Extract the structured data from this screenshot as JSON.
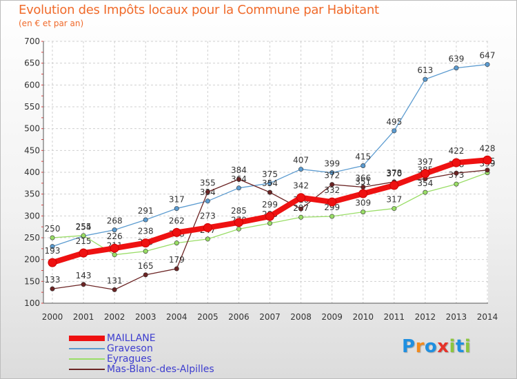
{
  "title": "Evolution des Impôts locaux pour la Commune par Habitant",
  "subtitle": "(en € et par an)",
  "logo": {
    "text": "Proxiti",
    "letters": [
      "P",
      "r",
      "o",
      "x",
      "i",
      "t",
      "i"
    ],
    "colors": [
      "#1f8fe0",
      "#f28a1c",
      "#1f8fe0",
      "#e6332a",
      "#8cc63f",
      "#1f8fe0",
      "#8cc63f"
    ]
  },
  "chart_data": {
    "type": "line",
    "title": "Evolution des Impôts locaux pour la Commune par Habitant",
    "subtitle": "(en € et par an)",
    "xlabel": "",
    "ylabel": "",
    "x": [
      "2000",
      "2001",
      "2002",
      "2003",
      "2004",
      "2005",
      "2006",
      "2007",
      "2008",
      "2009",
      "2010",
      "2011",
      "2012",
      "2013",
      "2014"
    ],
    "ylim": [
      100,
      700
    ],
    "yticks": [
      100,
      150,
      200,
      250,
      300,
      350,
      400,
      450,
      500,
      550,
      600,
      650,
      700
    ],
    "yticks_labels": [
      "100",
      "150",
      "200",
      "250",
      "300",
      "350",
      "400",
      "450",
      "500",
      "550",
      "600",
      "650",
      "700"
    ],
    "grid": true,
    "legend_position": "bottom-left",
    "series": [
      {
        "name": "MAILLANE",
        "color": "#ee1111",
        "values": [
          193,
          215,
          226,
          238,
          262,
          273,
          285,
          299,
          342,
          332,
          351,
          370,
          397,
          422,
          428
        ],
        "labels": [
          "193",
          "215",
          "226",
          "238",
          "262",
          "273",
          "285",
          "299",
          "342",
          "332",
          "351",
          "370",
          "397",
          "422",
          "428"
        ]
      },
      {
        "name": "Graveson",
        "color": "#5b9bd0",
        "values": [
          230,
          254,
          268,
          291,
          317,
          334,
          364,
          375,
          407,
          399,
          415,
          495,
          613,
          639,
          647
        ],
        "labels": [
          "",
          "254",
          "268",
          "291",
          "317",
          "334",
          "364",
          "375",
          "407",
          "399",
          "415",
          "495",
          "613",
          "639",
          "647"
        ]
      },
      {
        "name": "Eyragues",
        "color": "#99dd66",
        "values": [
          250,
          255,
          211,
          219,
          238,
          247,
          270,
          283,
          297,
          299,
          309,
          317,
          354,
          373,
          399
        ],
        "labels": [
          "250",
          "255",
          "211",
          "219",
          "238",
          "247",
          "270",
          "283",
          "297",
          "299",
          "309",
          "317",
          "354",
          "373",
          "399"
        ]
      },
      {
        "name": "Mas-Blanc-des-Alpilles",
        "color": "#6b2424",
        "values": [
          133,
          143,
          131,
          165,
          179,
          355,
          384,
          354,
          316,
          372,
          366,
          378,
          385,
          398,
          405
        ],
        "labels": [
          "133",
          "143",
          "131",
          "165",
          "179",
          "355",
          "384",
          "354",
          "316",
          "372",
          "366",
          "378",
          "385",
          "398",
          "405"
        ]
      }
    ]
  }
}
